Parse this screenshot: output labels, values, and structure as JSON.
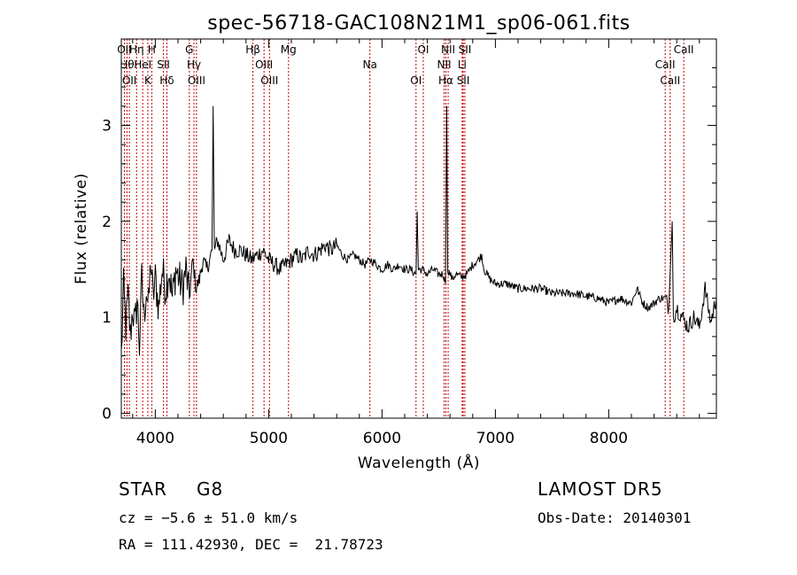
{
  "chart_data": {
    "type": "line",
    "title": "spec-56718-GAC108N21M1_sp06-061.fits",
    "xlabel": "Wavelength (Å)",
    "ylabel": "Flux (relative)",
    "xlim": [
      3700,
      8950
    ],
    "ylim": [
      -0.05,
      3.9
    ],
    "xticks": [
      4000,
      5000,
      6000,
      7000,
      8000
    ],
    "yticks": [
      0,
      1,
      2,
      3
    ],
    "series": [
      {
        "x": [
          3700,
          3720,
          3740,
          3760,
          3780,
          3800,
          3820,
          3840,
          3860,
          3880,
          3900,
          3920,
          3940,
          3960,
          3980,
          4000,
          4030,
          4060,
          4090,
          4120,
          4150,
          4180,
          4210,
          4240,
          4270,
          4300,
          4330,
          4360,
          4390,
          4420,
          4450,
          4480,
          4500,
          4510,
          4520,
          4550,
          4600,
          4650,
          4700,
          4750,
          4800,
          4850,
          4900,
          4950,
          5000,
          5050,
          5100,
          5150,
          5200,
          5250,
          5300,
          5350,
          5400,
          5450,
          5500,
          5550,
          5600,
          5650,
          5700,
          5750,
          5800,
          5850,
          5900,
          5950,
          6000,
          6050,
          6100,
          6150,
          6200,
          6250,
          6300,
          6310,
          6320,
          6350,
          6400,
          6450,
          6500,
          6540,
          6560,
          6570,
          6580,
          6600,
          6620,
          6650,
          6700,
          6750,
          6800,
          6850,
          6880,
          6900,
          6950,
          7000,
          7100,
          7200,
          7300,
          7400,
          7500,
          7600,
          7700,
          7800,
          7900,
          8000,
          8100,
          8200,
          8250,
          8300,
          8350,
          8400,
          8450,
          8500,
          8530,
          8560,
          8570,
          8600,
          8650,
          8700,
          8750,
          8800,
          8850,
          8900,
          8950
        ],
        "values": [
          0.6,
          1.3,
          0.9,
          1.2,
          0.8,
          1.1,
          0.9,
          1.2,
          0.7,
          1.4,
          1.0,
          1.3,
          1.1,
          1.6,
          1.2,
          1.4,
          1.1,
          1.5,
          1.3,
          1.5,
          1.2,
          1.5,
          1.4,
          1.3,
          1.5,
          1.2,
          1.6,
          1.3,
          1.4,
          1.6,
          1.5,
          1.6,
          1.7,
          3.2,
          1.7,
          1.8,
          1.6,
          1.8,
          1.7,
          1.7,
          1.65,
          1.6,
          1.65,
          1.7,
          1.6,
          1.55,
          1.5,
          1.55,
          1.6,
          1.65,
          1.6,
          1.7,
          1.65,
          1.7,
          1.75,
          1.7,
          1.75,
          1.65,
          1.6,
          1.65,
          1.6,
          1.55,
          1.6,
          1.55,
          1.5,
          1.55,
          1.5,
          1.55,
          1.5,
          1.5,
          1.45,
          2.1,
          1.5,
          1.5,
          1.45,
          1.5,
          1.45,
          1.45,
          1.35,
          3.2,
          1.5,
          1.45,
          1.4,
          1.45,
          1.42,
          1.45,
          1.55,
          1.6,
          1.65,
          1.5,
          1.4,
          1.35,
          1.35,
          1.3,
          1.3,
          1.3,
          1.25,
          1.25,
          1.25,
          1.22,
          1.2,
          1.15,
          1.2,
          1.15,
          1.3,
          1.15,
          1.1,
          1.15,
          1.2,
          1.2,
          1.1,
          2.0,
          1.0,
          1.1,
          1.0,
          0.9,
          1.0,
          0.9,
          1.3,
          0.95,
          1.2
        ]
      }
    ],
    "line_marks": [
      {
        "x": 3727,
        "label": "OII"
      },
      {
        "x": 3750,
        "label": "Hθ"
      },
      {
        "x": 3771,
        "label": "OII"
      },
      {
        "x": 3835,
        "label": "Hη"
      },
      {
        "x": 3889,
        "label": "HeI"
      },
      {
        "x": 3934,
        "label": "K"
      },
      {
        "x": 3969,
        "label": "H"
      },
      {
        "x": 4072,
        "label": "SII"
      },
      {
        "x": 4102,
        "label": "Hδ"
      },
      {
        "x": 4300,
        "label": "G"
      },
      {
        "x": 4341,
        "label": "Hγ"
      },
      {
        "x": 4363,
        "label": "OIII"
      },
      {
        "x": 4861,
        "label": "Hβ"
      },
      {
        "x": 4959,
        "label": "OIII"
      },
      {
        "x": 5007,
        "label": "OIII"
      },
      {
        "x": 5175,
        "label": "Mg"
      },
      {
        "x": 5893,
        "label": "Na"
      },
      {
        "x": 6300,
        "label": "OI"
      },
      {
        "x": 6364,
        "label": "OI"
      },
      {
        "x": 6548,
        "label": "NII"
      },
      {
        "x": 6563,
        "label": "Hα"
      },
      {
        "x": 6583,
        "label": "NII"
      },
      {
        "x": 6707,
        "label": "Li"
      },
      {
        "x": 6716,
        "label": "SII"
      },
      {
        "x": 6731,
        "label": "SII"
      },
      {
        "x": 8498,
        "label": "CaII"
      },
      {
        "x": 8542,
        "label": "CaII"
      },
      {
        "x": 8662,
        "label": "CaII"
      }
    ]
  },
  "info": {
    "object_class": "STAR",
    "subclass": "G8",
    "survey": "LAMOST DR5",
    "redshift": "cz = −5.6 ± 51.0 km/s",
    "obs_date": "Obs-Date: 20140301",
    "coords": "RA = 111.42930, DEC =  21.78723"
  },
  "colors": {
    "line": "#000000",
    "marker": "#c00000"
  }
}
